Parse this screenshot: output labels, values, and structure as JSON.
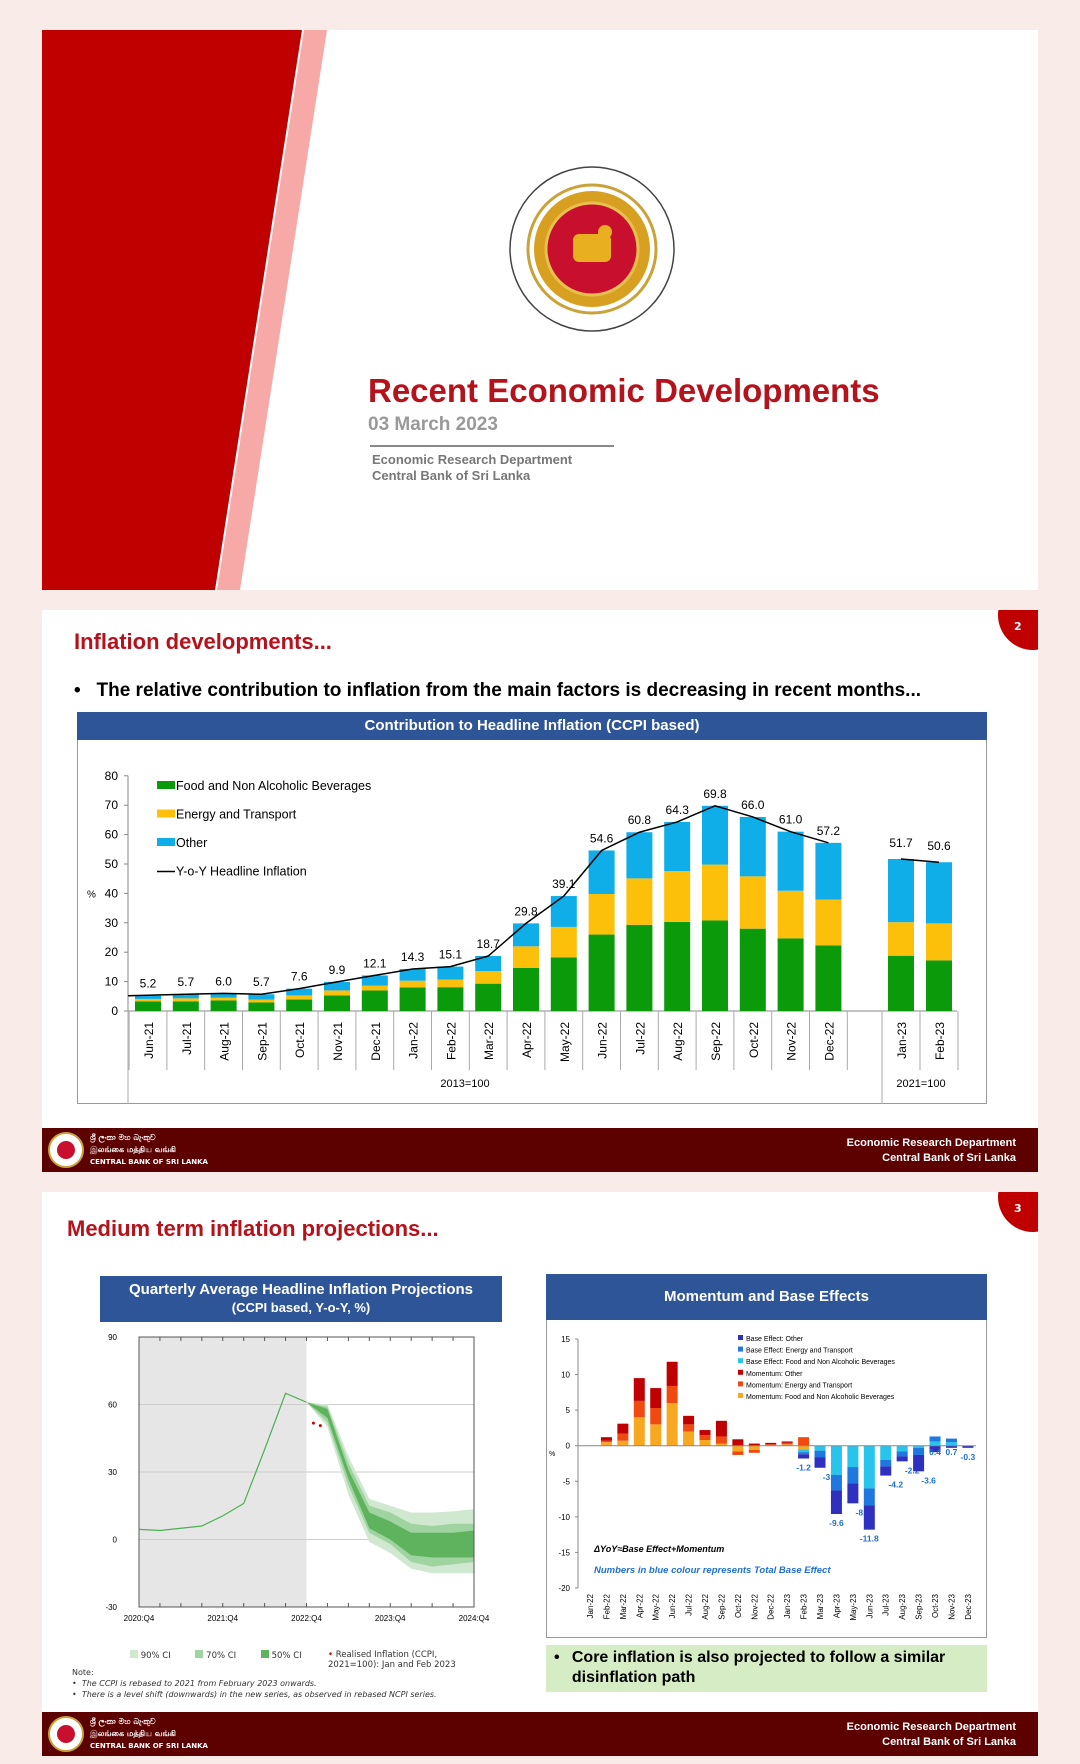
{
  "slide1": {
    "title": "Recent Economic Developments",
    "date": "03 March 2023",
    "department": "Economic Research Department",
    "institution": "Central Bank of Sri Lanka",
    "logo_text": "CENTRAL BANK OF SRI LANKA",
    "colors": {
      "brand_red": "#b5121b",
      "stripe_pink": "#f7a9a8",
      "dark_red": "#5c0000",
      "header_blue": "#2e5597"
    }
  },
  "footer": {
    "logo_sinhala": "ශ්‍රී ලංකා මහ බැංකුව",
    "logo_tamil": "இலங்கை மத்திய வங்கி",
    "logo_english": "CENTRAL BANK OF SRI LANKA",
    "line1": "Economic Research Department",
    "line2": "Central Bank of Sri Lanka"
  },
  "slide2": {
    "page_number": "2",
    "title": "Inflation developments...",
    "bullet": "The relative contribution to inflation from the main factors is decreasing in recent months...",
    "chart_header": "Contribution to Headline Inflation (CCPI based)"
  },
  "slide3": {
    "page_number": "3",
    "title": "Medium term inflation projections...",
    "left_header_line1": "Quarterly Average Headline Inflation Projections",
    "left_header_line2": "(CCPI based, Y-o-Y, %)",
    "right_header": "Momentum and Base Effects",
    "legend": {
      "ci90": "90% CI",
      "ci70": "70% CI",
      "ci50": "50% CI",
      "realised": "Realised Inflation (CCPI, 2021=100): Jan and Feb 2023"
    },
    "note_label": "Note:",
    "notes": [
      "The CCPI is rebased to 2021 from February 2023 onwards.",
      "There is a level shift (downwards) in the new series, as observed in rebased NCPI series."
    ],
    "bullet": "Core inflation is also projected to follow a similar disinflation path"
  },
  "chart_data": [
    {
      "type": "bar",
      "stacked": true,
      "title": "Contribution to Headline Inflation (CCPI based)",
      "ylabel": "%",
      "ylim": [
        0,
        80
      ],
      "yticks": [
        0,
        10,
        20,
        30,
        40,
        50,
        60,
        70,
        80
      ],
      "legend_position": "top-left",
      "categories": [
        "Jun-21",
        "Jul-21",
        "Aug-21",
        "Sep-21",
        "Oct-21",
        "Nov-21",
        "Dec-21",
        "Jan-22",
        "Feb-22",
        "Mar-22",
        "Apr-22",
        "May-22",
        "Jun-22",
        "Jul-22",
        "Aug-22",
        "Sep-22",
        "Oct-22",
        "Nov-22",
        "Dec-22",
        "Jan-23",
        "Feb-23"
      ],
      "base_groups": [
        {
          "label": "2013=100",
          "count": 19
        },
        {
          "label": "2021=100",
          "count": 2
        }
      ],
      "series": [
        {
          "name": "Food and Non Alcoholic Beverages",
          "color": "#0a9a0a",
          "values": [
            3.3,
            3.3,
            3.6,
            2.9,
            3.9,
            5.3,
            7.0,
            8.0,
            8.1,
            9.3,
            14.7,
            18.2,
            26.0,
            29.3,
            30.3,
            30.8,
            28.0,
            24.7,
            22.3,
            18.8,
            17.2
          ]
        },
        {
          "name": "Energy and Transport",
          "color": "#fcc00a",
          "values": [
            0.8,
            1.0,
            0.9,
            1.0,
            1.4,
            1.7,
            1.6,
            2.3,
            2.6,
            4.3,
            7.3,
            10.4,
            13.8,
            15.8,
            17.3,
            19.0,
            17.8,
            16.2,
            15.6,
            11.4,
            12.6
          ]
        },
        {
          "name": "Other",
          "color": "#10aee8",
          "values": [
            1.1,
            1.4,
            1.5,
            1.8,
            2.3,
            2.9,
            3.5,
            4.0,
            4.4,
            5.1,
            7.8,
            10.5,
            14.8,
            15.7,
            16.7,
            20.0,
            20.2,
            20.1,
            19.3,
            21.5,
            20.8
          ]
        },
        {
          "name": "Y-o-Y Headline Inflation",
          "type": "line",
          "color": "#000000",
          "values": [
            5.2,
            5.7,
            6.0,
            5.7,
            7.6,
            9.9,
            12.1,
            14.3,
            15.1,
            18.7,
            29.8,
            39.1,
            54.6,
            60.8,
            64.3,
            69.8,
            66.0,
            61.0,
            57.2,
            51.7,
            50.6
          ],
          "labels": [
            "5.2",
            "5.7",
            "6.0",
            "5.7",
            "7.6",
            "9.9",
            "12.1",
            "14.3",
            "15.1",
            "18.7",
            "29.8",
            "39.1",
            "54.6",
            "60.8",
            "64.3",
            "69.8",
            "66.0",
            "61.0",
            "57.2",
            "51.7",
            "50.6"
          ]
        }
      ]
    },
    {
      "type": "area",
      "title": "Quarterly Average Headline Inflation Projections (CCPI based, Y-o-Y, %)",
      "ylim": [
        -30,
        90
      ],
      "yticks": [
        -30,
        0,
        30,
        60,
        90
      ],
      "xticklabels": [
        "2020:Q4",
        "2021:Q4",
        "2022:Q4",
        "2023:Q4",
        "2024:Q4"
      ],
      "quarters": [
        "2020:Q4",
        "2021:Q1",
        "2021:Q2",
        "2021:Q3",
        "2021:Q4",
        "2022:Q1",
        "2022:Q2",
        "2022:Q3",
        "2022:Q4",
        "2023:Q1",
        "2023:Q2",
        "2023:Q3",
        "2023:Q4",
        "2024:Q1",
        "2024:Q2",
        "2024:Q3",
        "2024:Q4"
      ],
      "history_shaded_until": "2022:Q4",
      "history": [
        4.5,
        4,
        5,
        6,
        10.5,
        16,
        40,
        65,
        61
      ],
      "forecast_bands": {
        "quarters": [
          "2022:Q4",
          "2023:Q1",
          "2023:Q2",
          "2023:Q3",
          "2023:Q4",
          "2024:Q1",
          "2024:Q2",
          "2024:Q3",
          "2024:Q4"
        ],
        "ci90": [
          [
            61,
            61
          ],
          [
            50,
            60
          ],
          [
            20,
            37
          ],
          [
            -1,
            18
          ],
          [
            -6,
            15
          ],
          [
            -13,
            12
          ],
          [
            -15,
            12
          ],
          [
            -15,
            12.5
          ],
          [
            -15,
            13.5
          ]
        ],
        "ci70": [
          [
            61,
            61
          ],
          [
            52,
            59
          ],
          [
            24,
            34
          ],
          [
            3,
            15
          ],
          [
            -2,
            12
          ],
          [
            -10,
            7
          ],
          [
            -12,
            6
          ],
          [
            -11,
            7
          ],
          [
            -10,
            7
          ]
        ],
        "ci50": [
          [
            61,
            61
          ],
          [
            54,
            58
          ],
          [
            27,
            31
          ],
          [
            5,
            12
          ],
          [
            0,
            8
          ],
          [
            -7,
            3
          ],
          [
            -8,
            3
          ],
          [
            -8,
            3
          ],
          [
            -8,
            4
          ]
        ],
        "colors": {
          "ci90": "#cfe8cf",
          "ci70": "#9fd39f",
          "ci50": "#5fb35f"
        }
      },
      "realised": [
        {
          "month": "Jan 2023",
          "value": 51.7
        },
        {
          "month": "Feb 2023",
          "value": 50.6
        }
      ]
    },
    {
      "type": "bar",
      "stacked": true,
      "title": "Momentum and Base Effects",
      "ylabel": "%",
      "ylim": [
        -20,
        15
      ],
      "yticks": [
        -20,
        -15,
        -10,
        -5,
        0,
        5,
        10,
        15
      ],
      "legend_position": "top-right",
      "categories": [
        "Jan-22",
        "Feb-22",
        "Mar-22",
        "Apr-22",
        "May-22",
        "Jun-22",
        "Jul-22",
        "Aug-22",
        "Sep-22",
        "Oct-22",
        "Nov-22",
        "Dec-22",
        "Jan-23",
        "Feb-23",
        "Mar-23",
        "Apr-23",
        "May-23",
        "Jun-23",
        "Jul-23",
        "Aug-23",
        "Sep-23",
        "Oct-23",
        "Nov-23",
        "Dec-23"
      ],
      "series": [
        {
          "name": "Base Effect: Other",
          "color": "#3030c0",
          "values": [
            0,
            0,
            0,
            0,
            0,
            0,
            0,
            0,
            0,
            0,
            0,
            0,
            0,
            -0.6,
            -1.5,
            -3.3,
            -2.8,
            -3.4,
            -1.3,
            -0.7,
            -2.3,
            -0.9,
            -0.3,
            -0.3
          ]
        },
        {
          "name": "Base Effect: Energy and Transport",
          "color": "#1f78e0",
          "values": [
            0,
            0,
            0,
            0,
            0,
            0,
            0,
            0,
            0,
            0,
            0,
            0,
            0,
            -0.3,
            -0.9,
            -2.2,
            -2.3,
            -2.4,
            -0.9,
            -0.7,
            -1.0,
            0.7,
            0.5,
            0
          ]
        },
        {
          "name": "Base Effect: Food and Non Alcoholic Beverages",
          "color": "#28c4ec",
          "values": [
            0,
            0,
            0,
            0,
            0,
            0,
            0,
            0,
            0,
            0,
            0,
            0,
            0,
            -0.4,
            -0.7,
            -4.1,
            -3.0,
            -6.0,
            -2.0,
            -0.8,
            -0.3,
            0.6,
            0.5,
            0
          ]
        },
        {
          "name": "Momentum: Other",
          "color": "#c00000",
          "values": [
            0,
            0.5,
            1.4,
            3.2,
            2.8,
            3.4,
            1.2,
            0.7,
            2.2,
            0.9,
            0.3,
            0.2,
            0.2,
            0,
            0,
            0,
            0,
            0,
            0,
            0,
            0,
            0,
            0,
            0
          ]
        },
        {
          "name": "Momentum: Energy and Transport",
          "color": "#f04a10",
          "values": [
            0,
            0.2,
            1.0,
            2.3,
            2.3,
            2.4,
            1.0,
            0.7,
            1.0,
            -0.5,
            -0.4,
            0.1,
            0.2,
            1.2,
            0,
            0,
            0,
            0,
            0,
            0,
            0,
            0,
            0,
            0
          ]
        },
        {
          "name": "Momentum: Food and Non Alcoholic Beverages",
          "color": "#f8a820",
          "values": [
            0,
            0.5,
            0.7,
            4.0,
            3.0,
            6.0,
            2.0,
            0.8,
            0.3,
            -0.8,
            -0.6,
            0.1,
            0.2,
            -0.5,
            0,
            0,
            0,
            0,
            0,
            0,
            0,
            0,
            0,
            0
          ]
        }
      ],
      "base_effect_totals": {
        "Feb-23": "-1.2",
        "Mar-23": "-3.1",
        "Apr-23": "-9.6",
        "May-23": "-8.1",
        "Jun-23": "-11.8",
        "Jul-23": "-4.2",
        "Aug-23": "-2.2",
        "Sep-23": "-3.6",
        "Oct-23": "0.4",
        "Nov-23": "0.7",
        "Dec-23": "-0.3"
      },
      "annotation_formula": "ΔYoY≈Base Effect+Momentum",
      "annotation_note": "Numbers in blue colour represents Total Base Effect"
    }
  ]
}
